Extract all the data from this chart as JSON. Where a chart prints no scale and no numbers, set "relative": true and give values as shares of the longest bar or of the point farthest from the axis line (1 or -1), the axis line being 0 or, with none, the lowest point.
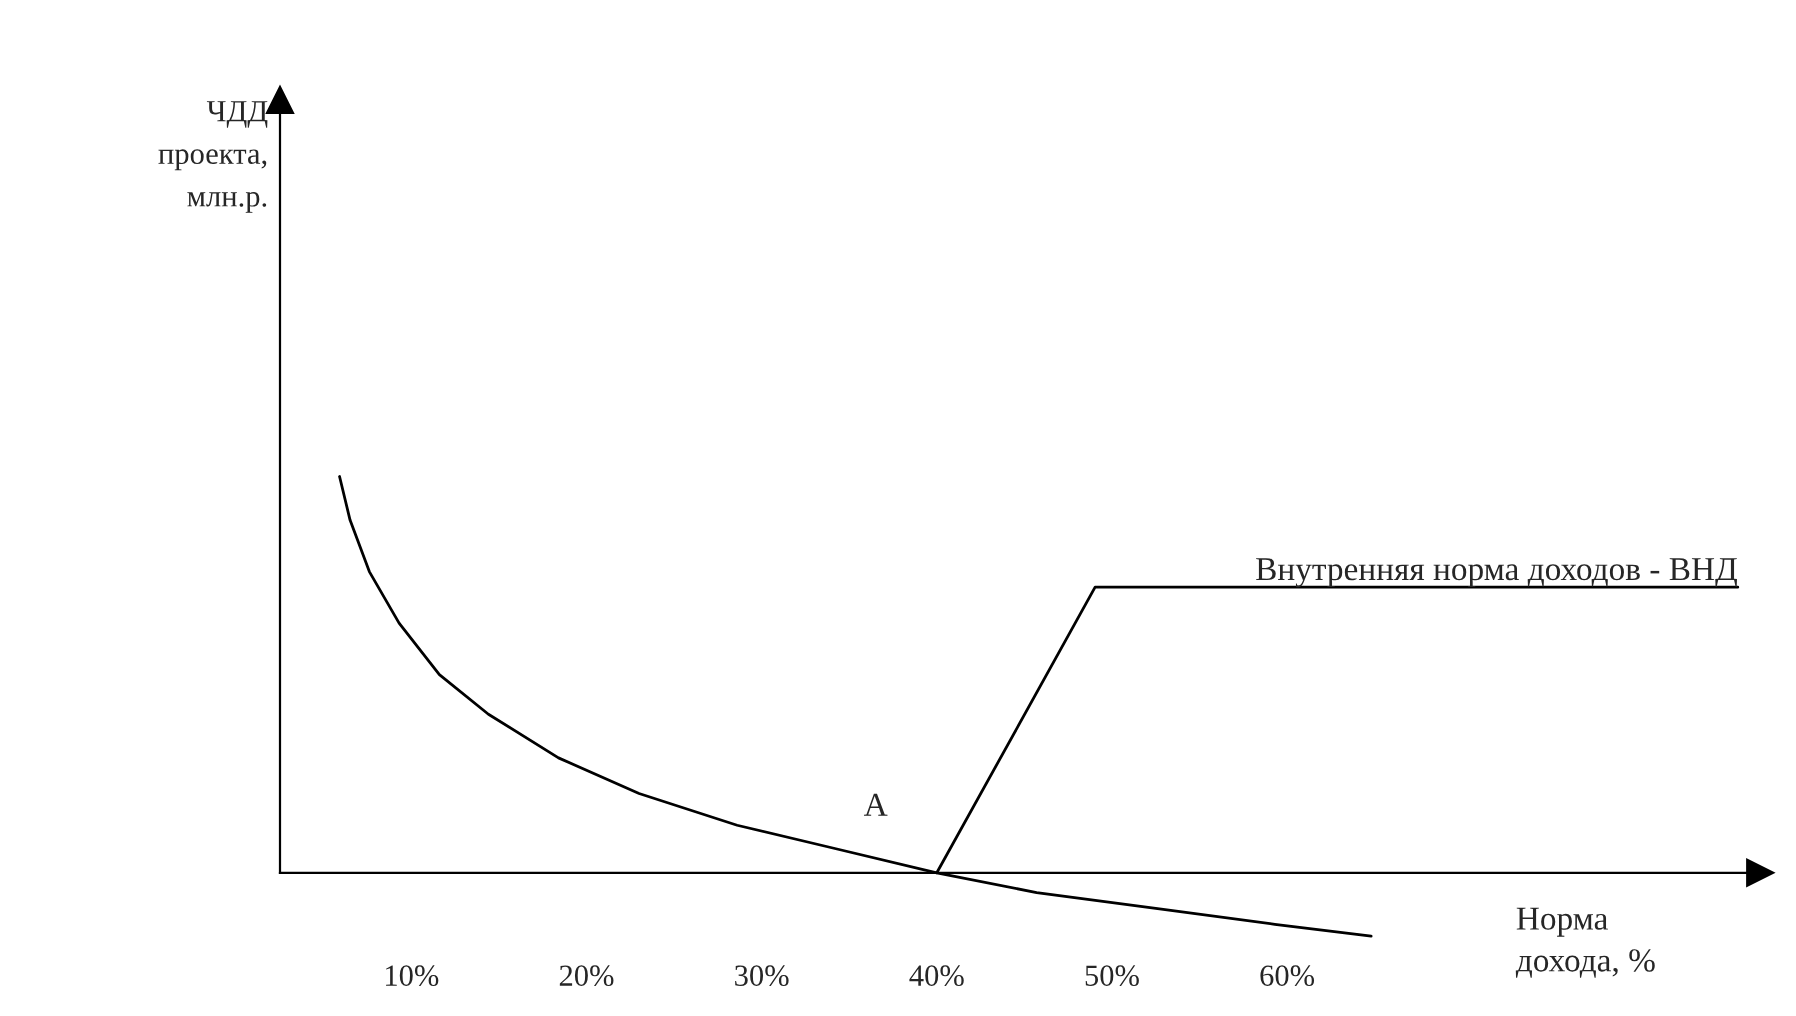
{
  "chart_data": {
    "type": "line",
    "relative": true,
    "xlabel": "Норма\nдохода, %",
    "x": [
      5.9,
      6.5,
      7.6,
      9.3,
      11.6,
      14.4,
      18.4,
      23.0,
      28.6,
      34.3,
      40,
      45.7,
      52.5,
      59.3,
      64.8
    ],
    "series": [
      {
        "color": "#000000",
        "values": [
          1.0,
          0.89,
          0.76,
          0.63,
          0.5,
          0.4,
          0.29,
          0.2,
          0.12,
          0.06,
          0,
          -0.05,
          -0.09,
          -0.13,
          -0.16
        ]
      }
    ],
    "xlim": [
      2.5,
      87
    ],
    "xticks": [
      {
        "value": 10,
        "label": "10%"
      },
      {
        "value": 20,
        "label": "20%"
      },
      {
        "value": 30,
        "label": "30%"
      },
      {
        "value": 40,
        "label": "40%"
      },
      {
        "value": 50,
        "label": "50%"
      },
      {
        "value": 60,
        "label": "60%"
      }
    ],
    "tick_labels": "x",
    "marker": "none",
    "line_style": "solid",
    "annotations": [
      {
        "text": "A",
        "x": 40,
        "y": 0
      },
      {
        "text": "Внутренняя норма доходов - ВНД",
        "x": 40,
        "y": 0
      },
      "ЧДД\nпроекта,\nмлн.р."
    ]
  }
}
